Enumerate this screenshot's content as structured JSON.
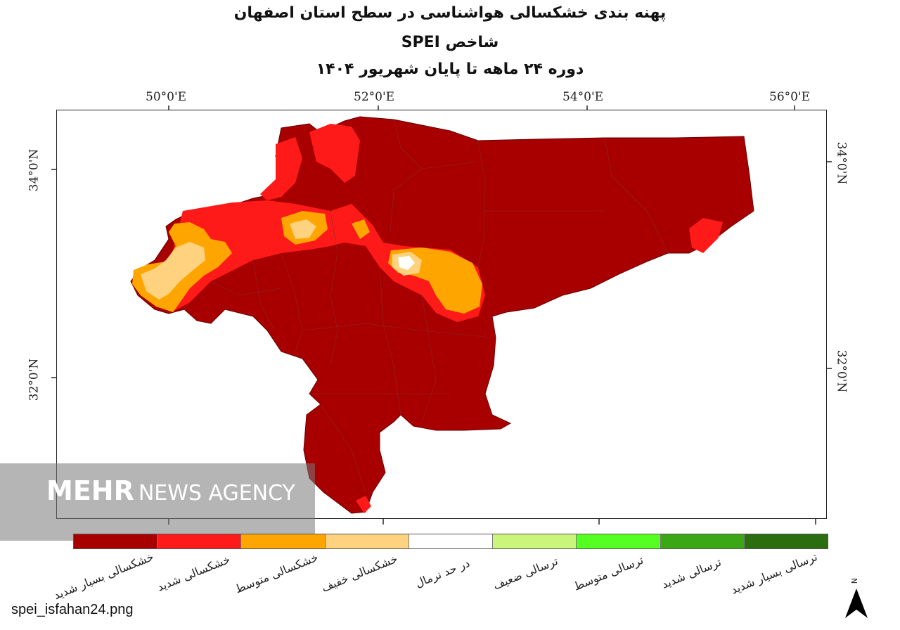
{
  "title": {
    "line1": "پهنه بندی خشکسالی هواشناسی در سطح استان اصفهان",
    "line2": "شاخص SPEI",
    "line3": "دوره ۲۴ ماهه تا پایان شهریور ۱۴۰۴"
  },
  "axes": {
    "longitude_labels": [
      "50°0'E",
      "52°0'E",
      "54°0'E",
      "56°0'E"
    ],
    "latitude_labels": [
      "34°0'N",
      "32°0'N"
    ]
  },
  "legend": {
    "items": [
      {
        "label": "خشکسالی بسیار شدید",
        "color": "#a80000"
      },
      {
        "label": "خشکسالی شدید",
        "color": "#ff1a1a"
      },
      {
        "label": "خشکسالی متوسط",
        "color": "#ffa500"
      },
      {
        "label": "خشکسالی خفیف",
        "color": "#ffd27f"
      },
      {
        "label": "در حد نرمال",
        "color": "#ffffff"
      },
      {
        "label": "ترسالی ضعیف",
        "color": "#c8f57a"
      },
      {
        "label": "ترسالی متوسط",
        "color": "#55ff22"
      },
      {
        "label": "ترسالی شدید",
        "color": "#3aa714"
      },
      {
        "label": "ترسالی بسیار شدید",
        "color": "#2a6e10"
      }
    ]
  },
  "north_arrow": {
    "label": "N",
    "icon": "north-arrow-icon"
  },
  "watermark": {
    "bold": "MEHR",
    "light": "NEWS AGENCY"
  },
  "filename": "spei_isfahan24.png"
}
